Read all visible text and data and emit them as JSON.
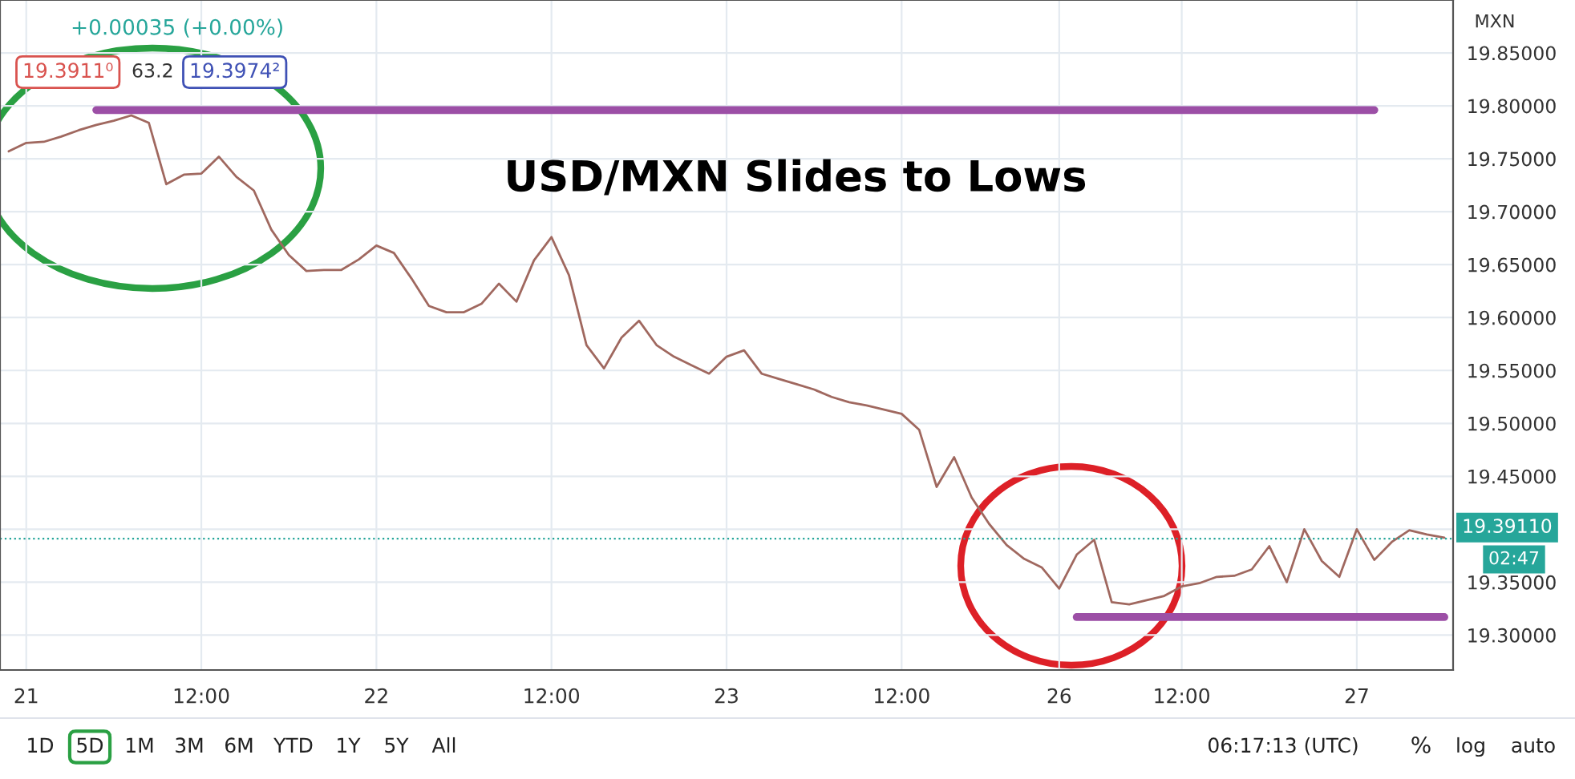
{
  "chart_data": {
    "type": "line",
    "title": "USD/MXN Slides to Lows",
    "categories": [
      null,
      "21",
      null,
      null,
      null,
      null,
      null,
      null,
      null,
      null,
      null,
      "12:00",
      null,
      null,
      null,
      null,
      null,
      null,
      null,
      null,
      null,
      "22",
      null,
      null,
      null,
      null,
      null,
      null,
      null,
      null,
      null,
      "12:00",
      null,
      null,
      null,
      null,
      null,
      null,
      null,
      null,
      null,
      "23",
      null,
      null,
      null,
      null,
      null,
      null,
      null,
      null,
      null,
      "12:00",
      null,
      null,
      null,
      null,
      null,
      null,
      null,
      null,
      "26",
      null,
      null,
      null,
      null,
      null,
      null,
      "12:00",
      null,
      null,
      null,
      null,
      null,
      null,
      null,
      null,
      null,
      "27",
      null,
      null,
      null,
      null,
      null
    ],
    "ylim": [
      19.267,
      19.9
    ],
    "yticks": [
      {
        "value": 19.3,
        "label": "19.30000"
      },
      {
        "value": 19.35,
        "label": "19.35000"
      },
      {
        "value": 19.4,
        "label": null
      },
      {
        "value": 19.45,
        "label": "19.45000"
      },
      {
        "value": 19.5,
        "label": "19.50000"
      },
      {
        "value": 19.55,
        "label": "19.55000"
      },
      {
        "value": 19.6,
        "label": "19.60000"
      },
      {
        "value": 19.65,
        "label": "19.65000"
      },
      {
        "value": 19.7,
        "label": "19.70000"
      },
      {
        "value": 19.75,
        "label": "19.75000"
      },
      {
        "value": 19.8,
        "label": "19.80000"
      },
      {
        "value": 19.85,
        "label": "19.85000"
      }
    ],
    "grid": true,
    "series": [
      {
        "color": "#a0685f",
        "values": [
          19.757,
          19.765,
          19.766,
          19.771,
          19.777,
          19.782,
          19.786,
          19.791,
          19.784,
          19.726,
          19.735,
          19.736,
          19.752,
          19.733,
          19.72,
          19.683,
          19.659,
          19.644,
          19.645,
          19.645,
          19.655,
          19.668,
          19.661,
          19.637,
          19.611,
          19.605,
          19.605,
          19.613,
          19.632,
          19.615,
          19.654,
          19.676,
          19.64,
          19.574,
          19.552,
          19.581,
          19.597,
          19.574,
          19.563,
          19.555,
          19.547,
          19.563,
          19.569,
          19.547,
          19.542,
          19.537,
          19.532,
          19.525,
          19.52,
          19.517,
          19.513,
          19.509,
          19.494,
          19.44,
          19.468,
          19.43,
          19.405,
          19.385,
          19.372,
          19.364,
          19.344,
          19.376,
          19.39,
          19.331,
          19.329,
          19.333,
          19.337,
          19.346,
          19.349,
          19.355,
          19.356,
          19.362,
          19.384,
          19.35,
          19.4,
          19.37,
          19.355,
          19.4,
          19.371,
          19.388,
          19.399,
          19.395,
          19.392
        ]
      },
      {
        "type": "line",
        "color": "#9c4fa6",
        "values": [
          null,
          null,
          null,
          null,
          null,
          19.796,
          19.796,
          19.796,
          19.796,
          19.796,
          19.796,
          19.796,
          19.796,
          19.796,
          19.796,
          19.796,
          19.796,
          19.796,
          19.796,
          19.796,
          19.796,
          19.796,
          19.796,
          19.796,
          19.796,
          19.796,
          19.796,
          19.796,
          19.796,
          19.796,
          19.796,
          19.796,
          19.796,
          19.796,
          19.796,
          19.796,
          19.796,
          19.796,
          19.796,
          19.796,
          19.796,
          19.796,
          19.796,
          19.796,
          19.796,
          19.796,
          19.796,
          19.796,
          19.796,
          19.796,
          19.796,
          19.796,
          19.796,
          19.796,
          19.796,
          19.796,
          19.796,
          19.796,
          19.796,
          19.796,
          19.796,
          19.796,
          19.796,
          19.796,
          19.796,
          19.796,
          19.796,
          19.796,
          19.796,
          19.796,
          19.796,
          19.796,
          19.796,
          19.796,
          19.796,
          19.796,
          19.796,
          19.796,
          19.796,
          null,
          null,
          null,
          null
        ]
      },
      {
        "type": "line",
        "color": "#9c4fa6",
        "values": [
          null,
          null,
          null,
          null,
          null,
          null,
          null,
          null,
          null,
          null,
          null,
          null,
          null,
          null,
          null,
          null,
          null,
          null,
          null,
          null,
          null,
          null,
          null,
          null,
          null,
          null,
          null,
          null,
          null,
          null,
          null,
          null,
          null,
          null,
          null,
          null,
          null,
          null,
          null,
          null,
          null,
          null,
          null,
          null,
          null,
          null,
          null,
          null,
          null,
          null,
          null,
          null,
          null,
          null,
          null,
          null,
          null,
          null,
          null,
          null,
          null,
          19.317,
          19.317,
          19.317,
          19.317,
          19.317,
          19.317,
          19.317,
          19.317,
          19.317,
          19.317,
          19.317,
          19.317,
          19.317,
          19.317,
          19.317,
          19.317,
          19.317,
          19.317,
          19.317,
          19.317,
          19.317,
          19.317
        ]
      }
    ],
    "ref_lines": [
      {
        "axis": "y",
        "value": 19.3911,
        "label": "19.39110",
        "color": "#26a69a",
        "line_style": "dotted"
      }
    ],
    "annotations": [
      "+0.00035 (+0.00%)",
      "19.3911⁰",
      "63.2",
      "19.3974²",
      "02:47",
      "MXN",
      "1D",
      "5D",
      "1M",
      "3M",
      "6M",
      "YTD",
      "1Y",
      "5Y",
      "All",
      "06:17:13 (UTC)",
      "%",
      "log",
      "auto"
    ]
  }
}
